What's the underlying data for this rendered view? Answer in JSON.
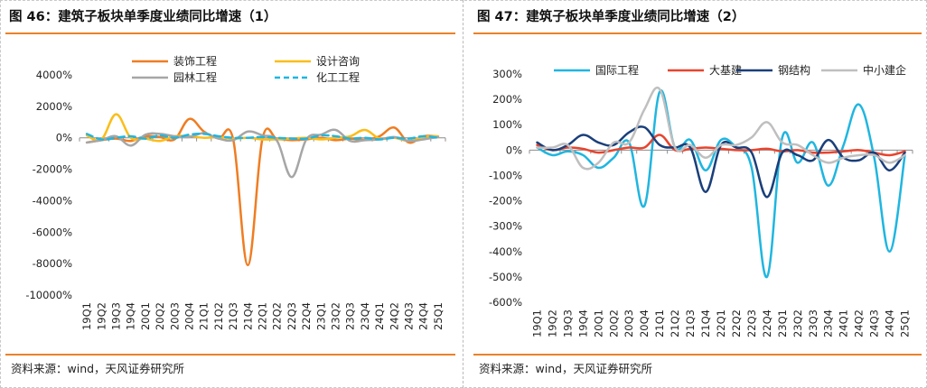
{
  "left": {
    "title": "图 46：建筑子板块单季度业绩同比增速（1）",
    "source": "资料来源：wind，天风证券研究所"
  },
  "right": {
    "title": "图 47：建筑子板块单季度业绩同比增速（2）",
    "source": "资料来源：wind，天风证券研究所"
  },
  "chart_data": [
    {
      "type": "line",
      "title": "图 46：建筑子板块单季度业绩同比增速（1）",
      "categories": [
        "19Q1",
        "19Q2",
        "19Q3",
        "19Q4",
        "20Q1",
        "20Q2",
        "20Q3",
        "20Q4",
        "21Q1",
        "21Q2",
        "21Q3",
        "21Q4",
        "22Q1",
        "22Q2",
        "22Q3",
        "22Q4",
        "23Q1",
        "23Q2",
        "23Q3",
        "23Q4",
        "24Q1",
        "24Q2",
        "24Q3",
        "24Q4",
        "25Q1"
      ],
      "ylim": [
        -10000,
        4000
      ],
      "yticks": [
        4000,
        2000,
        0,
        -2000,
        -4000,
        -6000,
        -8000,
        -10000
      ],
      "ytick_labels": [
        "4000%",
        "2000%",
        "0%",
        "-2000%",
        "-4000%",
        "-6000%",
        "-8000%",
        "-10000%"
      ],
      "legend_position": "top",
      "series": [
        {
          "name": "装饰工程",
          "color": "#ef7d22",
          "dash": "",
          "values": [
            -300,
            -150,
            -50,
            -200,
            100,
            50,
            -100,
            1200,
            400,
            -50,
            -100,
            -8100,
            -50,
            -80,
            -150,
            -100,
            0,
            -150,
            -60,
            -120,
            100,
            650,
            -300,
            100,
            80
          ]
        },
        {
          "name": "设计咨询",
          "color": "#fbbd19",
          "dash": "",
          "values": [
            150,
            -100,
            1500,
            0,
            -50,
            -200,
            100,
            100,
            0,
            50,
            -50,
            0,
            -100,
            -100,
            -50,
            0,
            -100,
            0,
            100,
            500,
            -50,
            0,
            -200,
            50,
            100
          ]
        },
        {
          "name": "园林工程",
          "color": "#a6a6a6",
          "dash": "",
          "values": [
            -300,
            -150,
            100,
            -500,
            200,
            250,
            100,
            50,
            300,
            -50,
            -150,
            400,
            150,
            -200,
            -2500,
            -100,
            200,
            500,
            -200,
            -150,
            -100,
            50,
            -200,
            -100,
            50
          ]
        },
        {
          "name": "化工工程",
          "color": "#1fb6e0",
          "dash": "7,5",
          "values": [
            250,
            -100,
            0,
            100,
            -50,
            150,
            0,
            200,
            250,
            100,
            0,
            0,
            50,
            0,
            -50,
            -50,
            150,
            100,
            -50,
            0,
            -100,
            0,
            -50,
            100,
            0
          ]
        }
      ]
    },
    {
      "type": "line",
      "title": "图 47：建筑子板块单季度业绩同比增速（2）",
      "categories": [
        "19Q1",
        "19Q2",
        "19Q3",
        "19Q4",
        "20Q1",
        "20Q2",
        "20Q3",
        "20Q4",
        "21Q1",
        "21Q2",
        "21Q3",
        "21Q4",
        "22Q1",
        "22Q2",
        "22Q3",
        "22Q4",
        "23Q1",
        "23Q2",
        "23Q3",
        "23Q4",
        "24Q1",
        "24Q2",
        "24Q3",
        "24Q4",
        "25Q1"
      ],
      "ylim": [
        -600,
        300
      ],
      "yticks": [
        300,
        200,
        100,
        0,
        -100,
        -200,
        -300,
        -400,
        -500,
        -600
      ],
      "ytick_labels": [
        "300%",
        "200%",
        "100%",
        "0%",
        "-100%",
        "-200%",
        "-300%",
        "-400%",
        "-500%",
        "-600%"
      ],
      "legend_position": "top",
      "series": [
        {
          "name": "国际工程",
          "color": "#1fb6e0",
          "dash": "",
          "values": [
            10,
            -20,
            -5,
            -20,
            -70,
            -30,
            30,
            -220,
            230,
            10,
            40,
            -80,
            40,
            10,
            -70,
            -500,
            50,
            -50,
            30,
            -140,
            20,
            180,
            -30,
            -400,
            -20
          ]
        },
        {
          "name": "大基建",
          "color": "#e8442e",
          "dash": "",
          "values": [
            20,
            0,
            10,
            5,
            -10,
            0,
            10,
            10,
            60,
            0,
            5,
            10,
            5,
            0,
            0,
            5,
            -5,
            0,
            -10,
            -10,
            -5,
            0,
            -10,
            -20,
            -5
          ]
        },
        {
          "name": "钢结构",
          "color": "#1a3f7a",
          "dash": "",
          "values": [
            30,
            0,
            20,
            60,
            30,
            20,
            70,
            90,
            20,
            10,
            10,
            -165,
            20,
            10,
            -10,
            -185,
            -10,
            -20,
            -40,
            40,
            -30,
            -40,
            -10,
            -80,
            -10
          ]
        },
        {
          "name": "中小建企",
          "color": "#bfbfbf",
          "dash": "",
          "values": [
            10,
            10,
            20,
            -70,
            -50,
            30,
            30,
            160,
            240,
            10,
            20,
            -30,
            20,
            20,
            50,
            110,
            30,
            20,
            -20,
            -50,
            -30,
            -20,
            -20,
            -50,
            -20
          ]
        }
      ]
    }
  ]
}
